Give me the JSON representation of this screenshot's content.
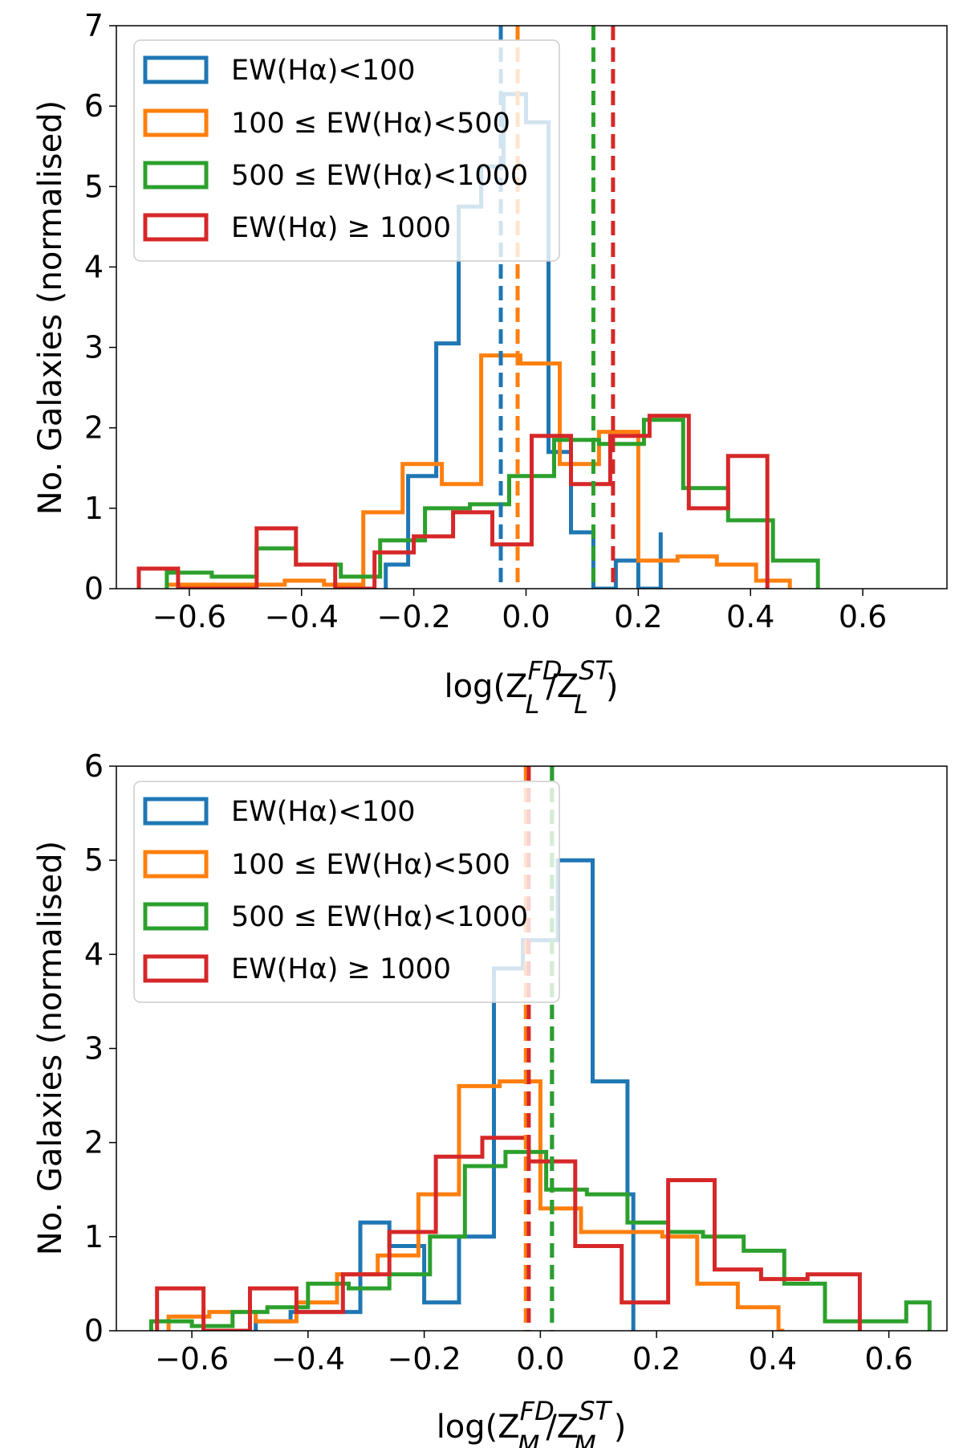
{
  "chart_data": [
    {
      "type": "step-histogram",
      "xlim": [
        -0.73,
        0.75
      ],
      "ylim": [
        0,
        7
      ],
      "xticks": [
        -0.6,
        -0.4,
        -0.2,
        0.0,
        0.2,
        0.4,
        0.6
      ],
      "xtick_labels": [
        "−0.6",
        "−0.4",
        "−0.2",
        "0.0",
        "0.2",
        "0.4",
        "0.6"
      ],
      "yticks": [
        0,
        1,
        2,
        3,
        4,
        5,
        6,
        7
      ],
      "ytick_labels": [
        "0",
        "1",
        "2",
        "3",
        "4",
        "5",
        "6",
        "7"
      ],
      "ylabel": "No. Galaxies (normalised)",
      "xlabel": {
        "prefix": "log(Z",
        "sub_letter": "L",
        "sup_num": "FD",
        "sup_den": "ST",
        "close": ")"
      },
      "series": [
        {
          "name": "EW(Hα)<100",
          "color": "#1f77b4",
          "edges": [
            -0.25,
            -0.21,
            -0.16,
            -0.12,
            -0.08,
            -0.04,
            0.0,
            0.04,
            0.08,
            0.12,
            0.16,
            0.2,
            0.24
          ],
          "values": [
            0.3,
            1.4,
            3.05,
            4.75,
            5.25,
            6.15,
            5.8,
            1.7,
            0.7,
            0.0,
            0.35,
            0.0,
            0.7
          ],
          "median": -0.045
        },
        {
          "name": "100 ≤ EW(Hα)<500",
          "color": "#ff7f0e",
          "edges": [
            -0.64,
            -0.57,
            -0.5,
            -0.43,
            -0.36,
            -0.29,
            -0.22,
            -0.15,
            -0.08,
            -0.01,
            0.06,
            0.13,
            0.2,
            0.27,
            0.34,
            0.41,
            0.47
          ],
          "values": [
            0.05,
            0.05,
            0.05,
            0.1,
            0.05,
            0.95,
            1.55,
            1.3,
            2.9,
            2.8,
            1.55,
            1.95,
            0.35,
            0.4,
            0.3,
            0.1
          ],
          "median": -0.015
        },
        {
          "name": "500 ≤ EW(Hα)<1000",
          "color": "#2ca02c",
          "edges": [
            -0.64,
            -0.56,
            -0.48,
            -0.41,
            -0.33,
            -0.26,
            -0.18,
            -0.1,
            -0.03,
            0.05,
            0.13,
            0.21,
            0.28,
            0.36,
            0.44,
            0.52
          ],
          "values": [
            0.2,
            0.15,
            0.5,
            0.3,
            0.15,
            0.6,
            1.0,
            1.05,
            1.4,
            1.85,
            1.8,
            2.1,
            1.25,
            0.85,
            0.35
          ],
          "median": 0.12
        },
        {
          "name": "EW(Hα) ≥ 1000",
          "color": "#d62728",
          "edges": [
            -0.69,
            -0.62,
            -0.55,
            -0.48,
            -0.41,
            -0.34,
            -0.27,
            -0.2,
            -0.13,
            -0.06,
            0.01,
            0.08,
            0.15,
            0.22,
            0.29,
            0.36,
            0.43
          ],
          "values": [
            0.25,
            0.0,
            0.0,
            0.75,
            0.3,
            0.0,
            0.45,
            0.65,
            0.95,
            0.55,
            1.9,
            1.3,
            1.9,
            2.15,
            1.0,
            1.65
          ],
          "median": 0.155
        }
      ]
    },
    {
      "type": "step-histogram",
      "xlim": [
        -0.73,
        0.7
      ],
      "ylim": [
        0,
        6
      ],
      "xticks": [
        -0.6,
        -0.4,
        -0.2,
        0.0,
        0.2,
        0.4,
        0.6
      ],
      "xtick_labels": [
        "−0.6",
        "−0.4",
        "−0.2",
        "0.0",
        "0.2",
        "0.4",
        "0.6"
      ],
      "yticks": [
        0,
        1,
        2,
        3,
        4,
        5,
        6
      ],
      "ytick_labels": [
        "0",
        "1",
        "2",
        "3",
        "4",
        "5",
        "6"
      ],
      "ylabel": "No. Galaxies (normalised)",
      "xlabel": {
        "prefix": "log(Z",
        "sub_letter": "M",
        "sup_num": "FD",
        "sup_den": "ST",
        "close": ")"
      },
      "series": [
        {
          "name": "EW(Hα)<100",
          "color": "#1f77b4",
          "edges": [
            -0.49,
            -0.43,
            -0.37,
            -0.31,
            -0.26,
            -0.2,
            -0.14,
            -0.08,
            -0.03,
            0.03,
            0.09,
            0.15,
            0.16
          ],
          "values": [
            0.1,
            0.2,
            0.2,
            1.15,
            0.9,
            0.3,
            1.0,
            3.85,
            4.15,
            5.0,
            2.65,
            1.45,
            0.0
          ],
          "median": 0.02
        },
        {
          "name": "100 ≤ EW(Hα)<500",
          "color": "#ff7f0e",
          "edges": [
            -0.64,
            -0.57,
            -0.49,
            -0.42,
            -0.35,
            -0.28,
            -0.21,
            -0.14,
            -0.07,
            0.0,
            0.07,
            0.14,
            0.21,
            0.27,
            0.34,
            0.41,
            0.42
          ],
          "values": [
            0.15,
            0.2,
            0.1,
            0.3,
            0.6,
            0.8,
            1.45,
            2.6,
            2.65,
            1.3,
            1.05,
            1.05,
            1.0,
            0.5,
            0.25,
            0.0
          ],
          "median": -0.025
        },
        {
          "name": "500 ≤ EW(Hα)<1000",
          "color": "#2ca02c",
          "edges": [
            -0.67,
            -0.6,
            -0.53,
            -0.47,
            -0.4,
            -0.33,
            -0.26,
            -0.19,
            -0.13,
            -0.06,
            0.01,
            0.08,
            0.15,
            0.22,
            0.28,
            0.35,
            0.42,
            0.49,
            0.56,
            0.63,
            0.67
          ],
          "values": [
            0.1,
            0.05,
            0.2,
            0.25,
            0.5,
            0.45,
            0.6,
            1.0,
            1.75,
            1.9,
            1.5,
            1.45,
            1.15,
            1.05,
            1.0,
            0.85,
            0.5,
            0.1,
            0.1,
            0.3
          ],
          "median": 0.02
        },
        {
          "name": "EW(Hα) ≥ 1000",
          "color": "#d62728",
          "edges": [
            -0.66,
            -0.58,
            -0.5,
            -0.42,
            -0.34,
            -0.26,
            -0.18,
            -0.1,
            -0.02,
            0.06,
            0.14,
            0.22,
            0.3,
            0.38,
            0.46,
            0.55
          ],
          "values": [
            0.45,
            0.0,
            0.45,
            0.2,
            0.6,
            1.05,
            1.85,
            2.05,
            1.8,
            0.9,
            0.3,
            1.6,
            0.65,
            0.55,
            0.6
          ],
          "median": -0.02
        }
      ]
    }
  ]
}
